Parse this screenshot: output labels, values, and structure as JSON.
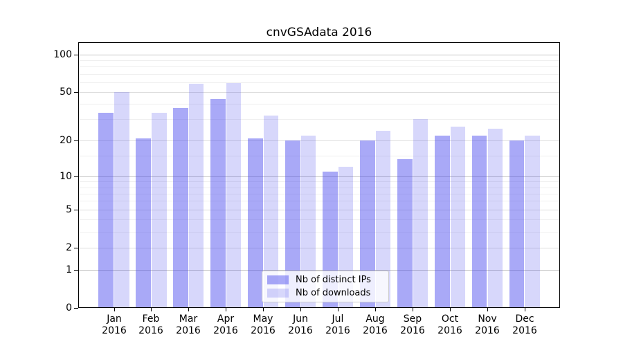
{
  "chart_data": {
    "type": "bar",
    "title": "cnvGSAdata 2016",
    "categories": [
      "Jan",
      "Feb",
      "Mar",
      "Apr",
      "May",
      "Jun",
      "Jul",
      "Aug",
      "Sep",
      "Oct",
      "Nov",
      "Dec"
    ],
    "category_year": "2016",
    "series": [
      {
        "name": "Nb of distinct IPs",
        "color": "rgba(68,68,238,0.46)",
        "values": [
          34,
          21,
          37,
          44,
          21,
          20,
          11,
          20,
          14,
          22,
          22,
          20
        ]
      },
      {
        "name": "Nb of downloads",
        "color": "rgba(68,68,238,0.21)",
        "values": [
          50,
          34,
          58,
          59,
          32,
          22,
          12,
          24,
          30,
          26,
          25,
          22
        ]
      }
    ],
    "xlabel": "",
    "ylabel": "",
    "y_scale": "log1p",
    "ylim": [
      0,
      125
    ],
    "y_ticks": [
      100,
      50,
      20,
      10,
      5,
      2,
      1,
      0
    ],
    "y_minor_ticks": [
      90,
      80,
      70,
      60,
      40,
      30,
      15,
      9,
      8,
      7,
      6,
      4,
      3
    ],
    "grid": "horizontal",
    "legend": {
      "position": "inside-bottom-center",
      "entries": [
        "Nb of distinct IPs",
        "Nb of downloads"
      ]
    },
    "colors": {
      "grid_major_strong": "#c3c3c3",
      "grid_major": "#dcdcdc",
      "grid_minor": "#efefef",
      "axis": "#000000",
      "text": "#000000",
      "legend_border": "#cccccc"
    }
  }
}
